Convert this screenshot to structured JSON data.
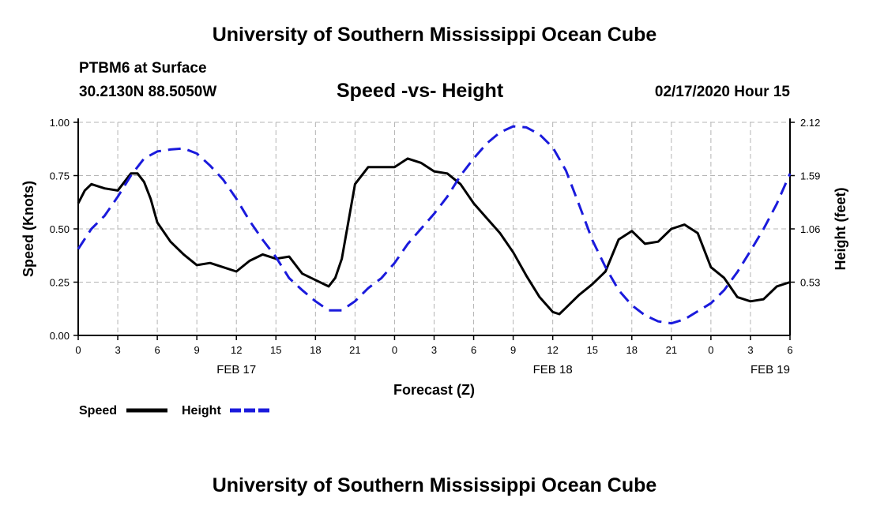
{
  "page": {
    "title_top": "University of Southern Mississippi Ocean Cube",
    "title_bottom": "University of Southern Mississippi Ocean Cube",
    "station": "PTBM6 at Surface",
    "location": "30.2130N 88.5050W",
    "datetime": "02/17/2020 Hour 15"
  },
  "colors": {
    "speed": "#000000",
    "height": "#1a1adc",
    "grid": "#b4b4b4"
  },
  "chart_data": {
    "type": "line",
    "title": "Speed -vs- Height",
    "xlabel": "Forecast (Z)",
    "ylabel": "Speed (Knots)",
    "y2label": "Height (feet)",
    "xlim": [
      0,
      54
    ],
    "ylim": [
      0,
      1
    ],
    "y2lim": [
      0,
      2.12
    ],
    "x_ticks": [
      0,
      3,
      6,
      9,
      12,
      15,
      18,
      21,
      24,
      27,
      30,
      33,
      36,
      39,
      42,
      45,
      48,
      51,
      54
    ],
    "x_tick_labels": [
      "0",
      "3",
      "6",
      "9",
      "12",
      "15",
      "18",
      "21",
      "0",
      "3",
      "6",
      "9",
      "12",
      "15",
      "18",
      "21",
      "0",
      "3",
      "6"
    ],
    "y_ticks": [
      0,
      0.25,
      0.5,
      0.75,
      1.0
    ],
    "y_tick_labels": [
      "0.00",
      "0.25",
      "0.50",
      "0.75",
      "1.00"
    ],
    "y2_ticks": [
      0.53,
      1.06,
      1.59,
      2.12
    ],
    "y2_tick_labels": [
      "0.53",
      "1.06",
      "1.59",
      "2.12"
    ],
    "date_labels": [
      {
        "x": 12,
        "label": "FEB 17"
      },
      {
        "x": 36,
        "label": "FEB 18"
      },
      {
        "x": 52.5,
        "label": "FEB 19"
      }
    ],
    "legend": [
      "Speed",
      "Height"
    ],
    "series": [
      {
        "name": "Speed",
        "axis": "left",
        "style": "solid",
        "x": [
          0,
          0.5,
          1,
          2,
          3,
          3.5,
          4,
          4.5,
          5,
          5.5,
          6,
          7,
          8,
          9,
          10,
          11,
          12,
          13,
          14,
          15,
          16,
          17,
          18,
          19,
          19.5,
          20,
          21,
          22,
          23,
          24,
          25,
          26,
          27,
          28,
          29,
          30,
          31,
          32,
          33,
          34,
          35,
          36,
          36.5,
          37,
          38,
          39,
          40,
          41,
          42,
          43,
          44,
          45,
          46,
          47,
          48,
          49,
          50,
          51,
          52,
          53,
          54
        ],
        "y": [
          0.62,
          0.68,
          0.71,
          0.69,
          0.68,
          0.72,
          0.76,
          0.76,
          0.72,
          0.64,
          0.53,
          0.44,
          0.38,
          0.33,
          0.34,
          0.32,
          0.3,
          0.35,
          0.38,
          0.36,
          0.37,
          0.29,
          0.26,
          0.23,
          0.27,
          0.36,
          0.71,
          0.79,
          0.79,
          0.79,
          0.83,
          0.81,
          0.77,
          0.76,
          0.71,
          0.62,
          0.55,
          0.48,
          0.39,
          0.28,
          0.18,
          0.11,
          0.1,
          0.13,
          0.19,
          0.24,
          0.3,
          0.45,
          0.49,
          0.43,
          0.44,
          0.5,
          0.52,
          0.48,
          0.32,
          0.27,
          0.18,
          0.16,
          0.17,
          0.23,
          0.25
        ]
      },
      {
        "name": "Height",
        "axis": "right",
        "style": "dashed",
        "x": [
          0,
          1,
          2,
          3,
          4,
          5,
          6,
          7,
          8,
          9,
          10,
          11,
          12,
          13,
          14,
          15,
          16,
          17,
          18,
          19,
          20,
          21,
          22,
          23,
          24,
          25,
          26,
          27,
          28,
          29,
          30,
          31,
          32,
          33,
          34,
          35,
          36,
          37,
          38,
          39,
          40,
          41,
          42,
          43,
          44,
          45,
          46,
          47,
          48,
          49,
          50,
          51,
          52,
          53,
          54
        ],
        "y": [
          0.86,
          1.06,
          1.19,
          1.38,
          1.59,
          1.76,
          1.83,
          1.85,
          1.86,
          1.81,
          1.69,
          1.55,
          1.36,
          1.14,
          0.95,
          0.78,
          0.57,
          0.45,
          0.34,
          0.25,
          0.25,
          0.34,
          0.47,
          0.57,
          0.72,
          0.91,
          1.06,
          1.21,
          1.38,
          1.59,
          1.76,
          1.91,
          2.02,
          2.08,
          2.07,
          2.0,
          1.87,
          1.64,
          1.3,
          0.95,
          0.68,
          0.45,
          0.3,
          0.2,
          0.14,
          0.12,
          0.16,
          0.24,
          0.32,
          0.45,
          0.63,
          0.84,
          1.06,
          1.31,
          1.61
        ]
      }
    ]
  }
}
